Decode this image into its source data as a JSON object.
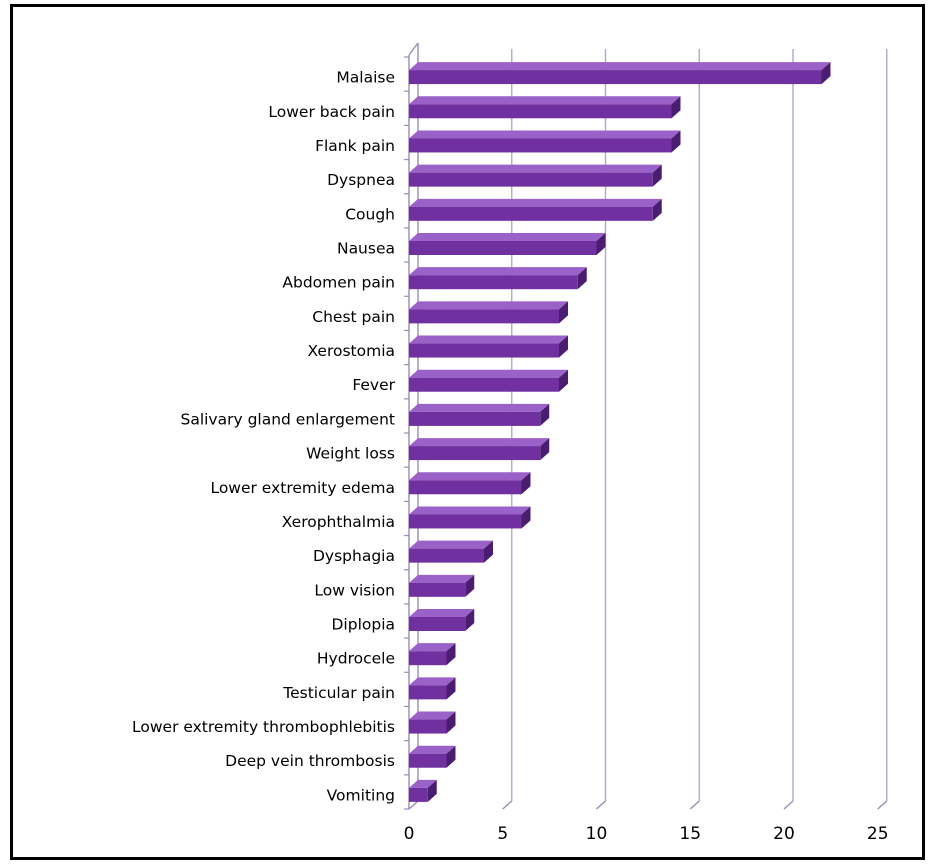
{
  "chart_data": {
    "type": "bar",
    "orientation": "horizontal",
    "style": "3d",
    "categories": [
      "Malaise",
      "Lower back pain",
      "Flank pain",
      "Dyspnea",
      "Cough",
      "Nausea",
      "Abdomen pain",
      "Chest pain",
      "Xerostomia",
      "Fever",
      "Salivary gland enlargement",
      "Weight loss",
      "Lower extremity edema",
      "Xerophthalmia",
      "Dysphagia",
      "Low vision",
      "Diplopia",
      "Hydrocele",
      "Testicular pain",
      "Lower extremity thrombophlebitis",
      "Deep vein thrombosis",
      "Vomiting"
    ],
    "values": [
      22,
      14,
      14,
      13,
      13,
      10,
      9,
      8,
      8,
      8,
      7,
      7,
      6,
      6,
      4,
      3,
      3,
      2,
      2,
      2,
      2,
      1
    ],
    "xlim": [
      0,
      25
    ],
    "xticks": [
      "0",
      "5",
      "10",
      "15",
      "20",
      "25"
    ],
    "grid": "vertical",
    "legend": "none",
    "colors": {
      "bar_front": "#7030a0",
      "bar_top": "#9a62c8",
      "bar_side": "#4b1d70",
      "gridline": "#b4a7cc",
      "wall": "#9b8bb5"
    }
  }
}
